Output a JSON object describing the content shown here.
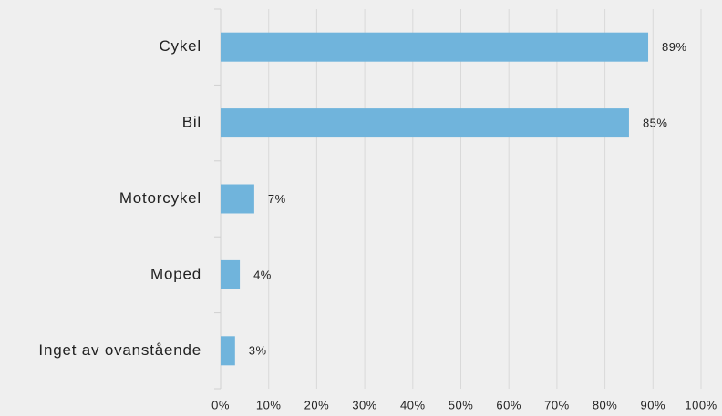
{
  "chart_data": {
    "type": "bar",
    "orientation": "horizontal",
    "categories": [
      "Cykel",
      "Bil",
      "Motorcykel",
      "Moped",
      "Inget av ovanstående"
    ],
    "values": [
      89,
      85,
      7,
      4,
      3
    ],
    "value_labels": [
      "89%",
      "85%",
      "7%",
      "4%",
      "3%"
    ],
    "color": "#70b4dc",
    "xlim": [
      0,
      100
    ],
    "xticks": [
      {
        "value": 0,
        "label": "0%"
      },
      {
        "value": 10,
        "label": "10%"
      },
      {
        "value": 20,
        "label": "20%"
      },
      {
        "value": 30,
        "label": "30%"
      },
      {
        "value": 40,
        "label": "40%"
      },
      {
        "value": 50,
        "label": "50%"
      },
      {
        "value": 60,
        "label": "60%"
      },
      {
        "value": 70,
        "label": "70%"
      },
      {
        "value": 80,
        "label": "80%"
      },
      {
        "value": 90,
        "label": "90%"
      },
      {
        "value": 100,
        "label": "100%"
      }
    ],
    "grid": true
  }
}
